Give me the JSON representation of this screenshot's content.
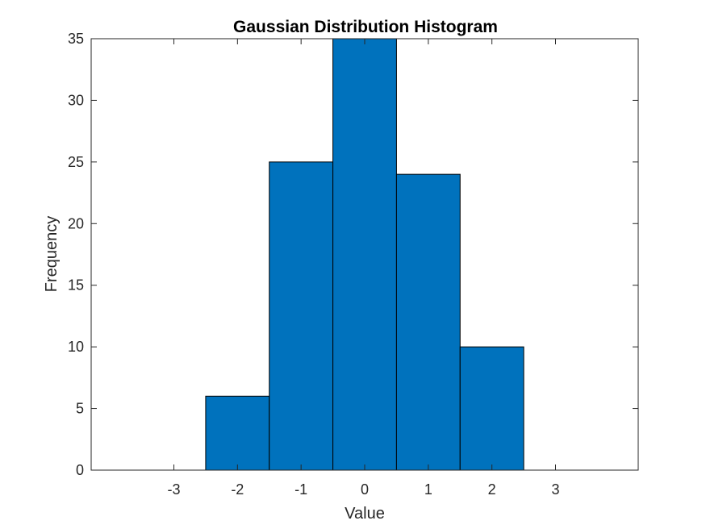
{
  "chart_data": {
    "type": "bar",
    "title": "Gaussian Distribution Histogram",
    "xlabel": "Value",
    "ylabel": "Frequency",
    "bin_edges": [
      -2.5,
      -1.5,
      -0.5,
      0.5,
      1.5,
      2.5
    ],
    "values": [
      6,
      25,
      35,
      24,
      10
    ],
    "xlim": [
      -4.3,
      4.3
    ],
    "ylim": [
      0,
      35
    ],
    "xticks": [
      -3,
      -2,
      -1,
      0,
      1,
      2,
      3
    ],
    "yticks": [
      0,
      5,
      10,
      15,
      20,
      25,
      30,
      35
    ],
    "grid": false,
    "legend": "none",
    "bar_color": "#0072BD",
    "edge_color": "#000000"
  }
}
